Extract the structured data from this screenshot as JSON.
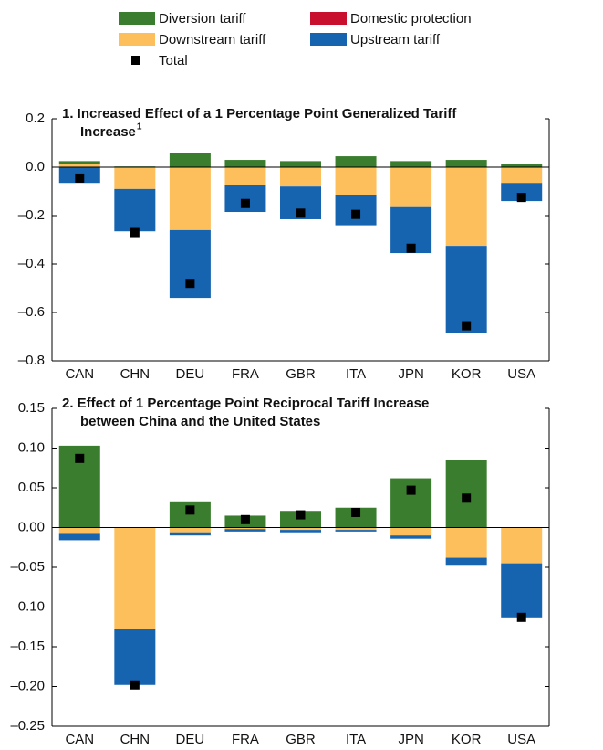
{
  "chart_data": [
    {
      "type": "stacked-bar",
      "title": [
        "1. Increased Effect of a 1 Percentage Point Generalized Tariff",
        "Increase"
      ],
      "title_footnote": "1",
      "categories": [
        "CAN",
        "CHN",
        "DEU",
        "FRA",
        "GBR",
        "ITA",
        "JPN",
        "KOR",
        "USA"
      ],
      "series": [
        {
          "name": "Diversion tariff",
          "color": "#3b7d2e",
          "values": [
            0.01,
            0.003,
            0.06,
            0.03,
            0.025,
            0.045,
            0.025,
            0.03,
            0.015
          ]
        },
        {
          "name": "Domestic protection",
          "color": "#c8102e",
          "values": [
            0,
            0,
            0,
            0,
            0,
            0,
            0,
            0,
            0
          ]
        },
        {
          "name": "Downstream tariff",
          "color": "#fdbf5b",
          "values": [
            0.015,
            -0.09,
            -0.26,
            -0.075,
            -0.08,
            -0.115,
            -0.165,
            -0.325,
            -0.065
          ]
        },
        {
          "name": "Upstream tariff",
          "color": "#1663b0",
          "values": [
            -0.065,
            -0.175,
            -0.28,
            -0.11,
            -0.135,
            -0.125,
            -0.19,
            -0.36,
            -0.075
          ]
        },
        {
          "name": "Total",
          "color": "#000000",
          "marker": "square",
          "values": [
            -0.045,
            -0.27,
            -0.48,
            -0.15,
            -0.19,
            -0.195,
            -0.335,
            -0.655,
            -0.125
          ]
        }
      ],
      "ylim": [
        -0.8,
        0.2
      ],
      "yticks": [
        {
          "value": -0.8,
          "label": "–0.8"
        },
        {
          "value": -0.6,
          "label": "–0.6"
        },
        {
          "value": -0.4,
          "label": "–0.4"
        },
        {
          "value": -0.2,
          "label": "–0.2"
        },
        {
          "value": 0,
          "label": "0.0"
        },
        0.2
      ]
    },
    {
      "type": "stacked-bar",
      "title": [
        "2. Effect of 1 Percentage Point Reciprocal Tariff Increase",
        "between China and the United States"
      ],
      "categories": [
        "CAN",
        "CHN",
        "DEU",
        "FRA",
        "GBR",
        "ITA",
        "JPN",
        "KOR",
        "USA"
      ],
      "series": [
        {
          "name": "Diversion tariff",
          "color": "#3b7d2e",
          "values": [
            0.103,
            0,
            0.033,
            0.015,
            0.021,
            0.025,
            0.062,
            0.085,
            0
          ]
        },
        {
          "name": "Domestic protection",
          "color": "#c8102e",
          "values": [
            0,
            0,
            0,
            0,
            0,
            0,
            0,
            0,
            0
          ]
        },
        {
          "name": "Downstream tariff",
          "color": "#fdbf5b",
          "values": [
            -0.008,
            -0.128,
            -0.006,
            -0.002,
            -0.003,
            -0.003,
            -0.01,
            -0.038,
            -0.045
          ]
        },
        {
          "name": "Upstream tariff",
          "color": "#1663b0",
          "values": [
            -0.008,
            -0.07,
            -0.004,
            -0.003,
            -0.003,
            -0.002,
            -0.004,
            -0.01,
            -0.068
          ]
        },
        {
          "name": "Total",
          "color": "#000000",
          "marker": "square",
          "values": [
            0.087,
            -0.198,
            0.022,
            0.01,
            0.016,
            0.019,
            0.047,
            0.037,
            -0.113
          ]
        }
      ],
      "ylim": [
        -0.25,
        0.15
      ],
      "yticks": [
        {
          "value": -0.25,
          "label": "–0.25"
        },
        {
          "value": -0.2,
          "label": "–0.20"
        },
        {
          "value": -0.15,
          "label": "–0.15"
        },
        {
          "value": -0.1,
          "label": "–0.10"
        },
        {
          "value": -0.05,
          "label": "–0.05"
        },
        {
          "value": 0,
          "label": "0.00"
        },
        0.05,
        {
          "value": 0.1,
          "label": "0.10"
        },
        0.15
      ]
    }
  ]
}
